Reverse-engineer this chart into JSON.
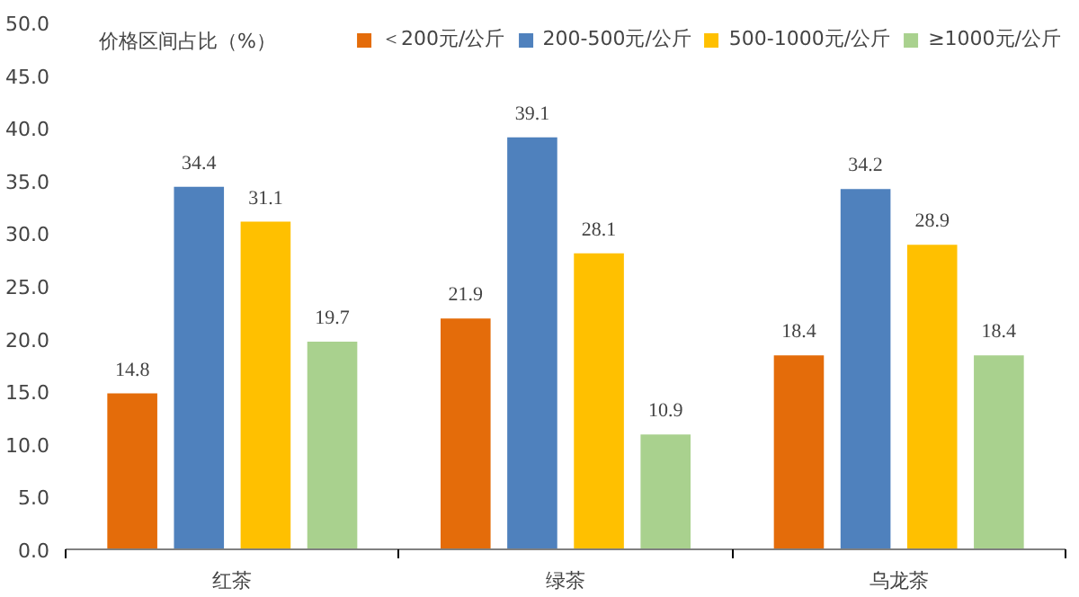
{
  "chart_data": {
    "type": "bar",
    "ylabel": "价格区间占比（%）",
    "categories": [
      "红茶",
      "绿茶",
      "乌龙茶"
    ],
    "series": [
      {
        "name": "＜200元/公斤",
        "color": "#e46c0a",
        "values": [
          14.8,
          21.9,
          18.4
        ]
      },
      {
        "name": "200-500元/公斤",
        "color": "#4f81bd",
        "values": [
          34.4,
          39.1,
          34.2
        ]
      },
      {
        "name": "500-1000元/公斤",
        "color": "#ffc000",
        "values": [
          31.1,
          28.1,
          28.9
        ]
      },
      {
        "name": "≥1000元/公斤",
        "color": "#a9d18e",
        "values": [
          19.7,
          10.9,
          18.4
        ]
      }
    ],
    "ylim": [
      0,
      50
    ],
    "yticks": [
      {
        "value": 0,
        "label": "0.0"
      },
      {
        "value": 5,
        "label": "5.0"
      },
      {
        "value": 10,
        "label": "10.0"
      },
      {
        "value": 15,
        "label": "15.0"
      },
      {
        "value": 20,
        "label": "20.0"
      },
      {
        "value": 25,
        "label": "25.0"
      },
      {
        "value": 30,
        "label": "30.0"
      },
      {
        "value": 35,
        "label": "35.0"
      },
      {
        "value": 40,
        "label": "40.0"
      },
      {
        "value": 45,
        "label": "45.0"
      },
      {
        "value": 50,
        "label": "50.0"
      }
    ],
    "data_labels": true,
    "grid": false,
    "legend": "top right"
  }
}
